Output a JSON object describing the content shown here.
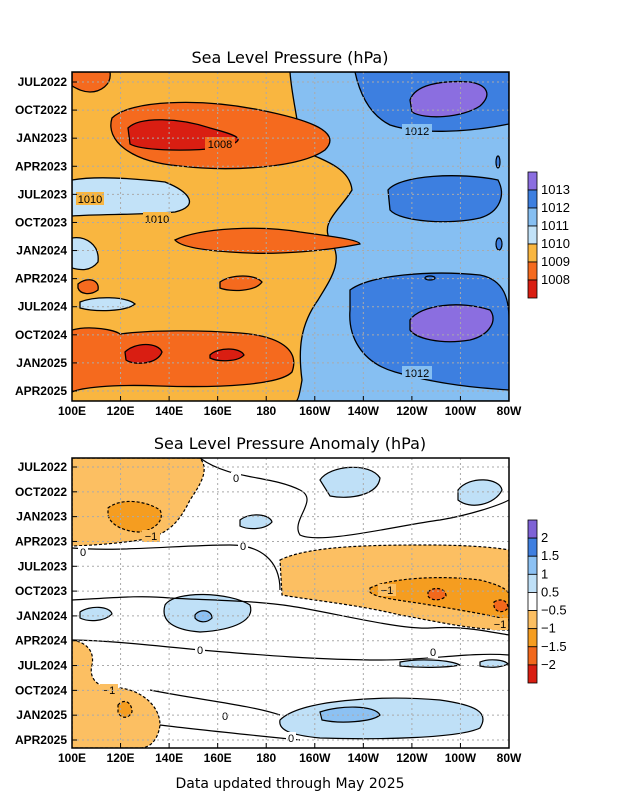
{
  "chart_data": [
    {
      "type": "heatmap",
      "title": "Sea Level Pressure (hPa)",
      "x_tick_labels": [
        "100E",
        "120E",
        "140E",
        "160E",
        "180",
        "160W",
        "140W",
        "120W",
        "100W",
        "80W"
      ],
      "y_tick_labels": [
        "JUL2022",
        "OCT2022",
        "JAN2023",
        "APR2023",
        "JUL2023",
        "OCT2023",
        "JAN2024",
        "APR2024",
        "JUL2024",
        "OCT2024",
        "JAN2025",
        "APR2025"
      ],
      "grid": true,
      "colorbar": {
        "labels": [
          "1013",
          "1012",
          "1011",
          "1010",
          "1009",
          "1008"
        ],
        "colors": [
          "#8b6ee0",
          "#3d7fe0",
          "#86bff2",
          "#c2e2f8",
          "#f9b640",
          "#f56a1e",
          "#d91e12"
        ]
      },
      "contour_labels": [
        {
          "text": "1008"
        },
        {
          "text": "1012"
        },
        {
          "text": "1010"
        },
        {
          "text": "1010"
        },
        {
          "text": "1012"
        }
      ]
    },
    {
      "type": "heatmap",
      "title": "Sea Level Pressure Anomaly (hPa)",
      "x_tick_labels": [
        "100E",
        "120E",
        "140E",
        "160E",
        "180",
        "160W",
        "140W",
        "120W",
        "100W",
        "80W"
      ],
      "y_tick_labels": [
        "JUL2022",
        "OCT2022",
        "JAN2023",
        "APR2023",
        "JUL2023",
        "OCT2023",
        "JAN2024",
        "APR2024",
        "JUL2024",
        "OCT2024",
        "JAN2025",
        "APR2025"
      ],
      "grid": true,
      "colorbar": {
        "labels": [
          "2",
          "1.5",
          "1",
          "0.5",
          "−0.5",
          "−1",
          "−1.5",
          "−2"
        ],
        "colors": [
          "#7e62d6",
          "#3f7fe0",
          "#8cc1f3",
          "#bfe0f7",
          "#ffffff",
          "#fcbf62",
          "#f59d20",
          "#f2681c",
          "#d91e12"
        ]
      },
      "contour_labels": [
        {
          "text": "0"
        },
        {
          "text": "−1"
        },
        {
          "text": "0"
        },
        {
          "text": "−1"
        },
        {
          "text": "−1"
        },
        {
          "text": "0"
        },
        {
          "text": "0"
        },
        {
          "text": "−1"
        },
        {
          "text": "0"
        },
        {
          "text": "0"
        },
        {
          "text": "0"
        }
      ]
    }
  ],
  "footer": "Data updated through May 2025"
}
